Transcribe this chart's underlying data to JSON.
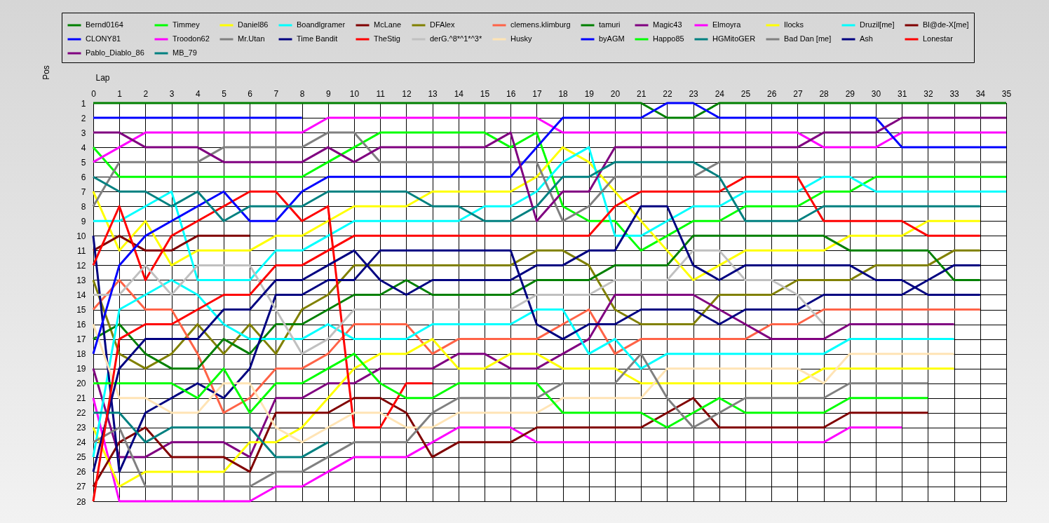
{
  "chart_data": {
    "type": "line",
    "xlabel": "Lap",
    "ylabel": "Pos",
    "x": [
      0,
      1,
      2,
      3,
      4,
      5,
      6,
      7,
      8,
      9,
      10,
      11,
      12,
      13,
      14,
      15,
      16,
      17,
      18,
      19,
      20,
      21,
      22,
      23,
      24,
      25,
      26,
      27,
      28,
      29,
      30,
      31,
      32,
      33,
      34,
      35
    ],
    "xlim": [
      0,
      35
    ],
    "ylim": [
      28,
      1
    ],
    "xticks": [
      0,
      1,
      2,
      3,
      4,
      5,
      6,
      7,
      8,
      9,
      10,
      11,
      12,
      13,
      14,
      15,
      16,
      17,
      18,
      19,
      20,
      21,
      22,
      23,
      24,
      25,
      26,
      27,
      28,
      29,
      30,
      31,
      32,
      33,
      34,
      35
    ],
    "yticks": [
      1,
      2,
      3,
      4,
      5,
      6,
      7,
      8,
      9,
      10,
      11,
      12,
      13,
      14,
      15,
      16,
      17,
      18,
      19,
      20,
      21,
      22,
      23,
      24,
      25,
      26,
      27,
      28
    ],
    "grid": true,
    "legend": "top",
    "line_style": "solid",
    "series": [
      {
        "name": "Bernd0164",
        "color": "#008000",
        "values": [
          1,
          1,
          1,
          1,
          1,
          1,
          1,
          1,
          1,
          1,
          1,
          1,
          1,
          1,
          1,
          1,
          1,
          1,
          1,
          1,
          1,
          1,
          2,
          2,
          1,
          1,
          1,
          1,
          1,
          1,
          1,
          1,
          1,
          1,
          1,
          1
        ]
      },
      {
        "name": "Timmey",
        "color": "#00ff00",
        "values": [
          4,
          6,
          6,
          6,
          6,
          6,
          6,
          6,
          6,
          5,
          4,
          3,
          3,
          3,
          3,
          3,
          4,
          3,
          8,
          9,
          9,
          11,
          10,
          9,
          9,
          8,
          8,
          8,
          7,
          7,
          6,
          6,
          6,
          6,
          6,
          6
        ]
      },
      {
        "name": "Daniel86",
        "color": "#ffff00",
        "values": [
          7,
          11,
          9,
          12,
          11,
          11,
          11,
          10,
          10,
          9,
          8,
          8,
          8,
          7,
          7,
          7,
          7,
          6,
          4,
          5,
          7,
          9,
          11,
          13,
          12,
          11,
          11,
          11,
          11,
          10,
          10,
          10,
          9,
          9,
          9,
          null
        ]
      },
      {
        "name": "Boandlgramer",
        "color": "#00ffff",
        "values": [
          9,
          9,
          8,
          7,
          13,
          13,
          13,
          11,
          11,
          10,
          9,
          9,
          9,
          9,
          9,
          8,
          8,
          7,
          5,
          4,
          10,
          10,
          9,
          8,
          8,
          7,
          7,
          7,
          6,
          6,
          7,
          7,
          7,
          7,
          7,
          7
        ]
      },
      {
        "name": "McLane",
        "color": "#800000",
        "values": [
          11,
          10,
          11,
          11,
          10,
          10,
          10,
          null,
          null,
          null,
          null,
          null,
          null,
          null,
          null,
          null,
          null,
          null,
          null,
          null,
          null,
          null,
          null,
          null,
          null,
          null,
          null,
          null,
          null,
          null,
          null,
          null,
          null,
          null,
          null,
          null
        ]
      },
      {
        "name": "DFAlex",
        "color": "#808000",
        "values": [
          13,
          18,
          19,
          18,
          16,
          18,
          16,
          18,
          15,
          14,
          12,
          12,
          12,
          12,
          12,
          12,
          12,
          11,
          11,
          12,
          15,
          16,
          16,
          16,
          14,
          14,
          14,
          13,
          13,
          13,
          12,
          12,
          12,
          11,
          11,
          null
        ]
      },
      {
        "name": "clemens.klimburg",
        "color": "#ff6347",
        "values": [
          15,
          13,
          15,
          15,
          18,
          22,
          21,
          19,
          19,
          18,
          16,
          16,
          16,
          18,
          17,
          17,
          17,
          17,
          16,
          15,
          18,
          17,
          17,
          17,
          17,
          17,
          16,
          16,
          15,
          15,
          15,
          15,
          15,
          15,
          15,
          null
        ]
      },
      {
        "name": "tamuri",
        "color": "#008000",
        "values": [
          17,
          16,
          18,
          19,
          19,
          17,
          18,
          16,
          16,
          15,
          14,
          14,
          13,
          14,
          14,
          14,
          14,
          13,
          13,
          13,
          12,
          12,
          12,
          10,
          10,
          10,
          10,
          10,
          10,
          11,
          11,
          11,
          11,
          13,
          13,
          null
        ]
      },
      {
        "name": "Magic43",
        "color": "#800080",
        "values": [
          19,
          25,
          25,
          24,
          24,
          24,
          25,
          21,
          21,
          20,
          20,
          19,
          19,
          19,
          18,
          18,
          19,
          19,
          18,
          17,
          14,
          14,
          14,
          14,
          15,
          16,
          17,
          17,
          17,
          16,
          16,
          16,
          16,
          16,
          null,
          null
        ]
      },
      {
        "name": "Elmoyra",
        "color": "#ff00ff",
        "values": [
          21,
          28,
          28,
          28,
          28,
          28,
          28,
          27,
          27,
          26,
          25,
          25,
          25,
          24,
          23,
          23,
          23,
          24,
          24,
          24,
          24,
          24,
          24,
          24,
          24,
          24,
          24,
          24,
          24,
          23,
          23,
          23,
          null,
          null,
          null,
          null
        ]
      },
      {
        "name": "Ilocks",
        "color": "#ffff00",
        "values": [
          23,
          27,
          26,
          26,
          26,
          26,
          24,
          24,
          23,
          21,
          19,
          18,
          18,
          17,
          19,
          19,
          18,
          18,
          19,
          19,
          19,
          20,
          20,
          20,
          20,
          20,
          20,
          20,
          19,
          19,
          19,
          19,
          19,
          19,
          null,
          null
        ]
      },
      {
        "name": "Druzil[me]",
        "color": "#00ffff",
        "values": [
          25,
          15,
          14,
          13,
          14,
          16,
          17,
          17,
          17,
          16,
          17,
          17,
          17,
          16,
          16,
          16,
          16,
          15,
          15,
          18,
          17,
          19,
          18,
          18,
          18,
          18,
          18,
          18,
          18,
          17,
          17,
          17,
          17,
          17,
          null,
          null
        ]
      },
      {
        "name": "Bl@de-X[me]",
        "color": "#800000",
        "values": [
          27,
          24,
          23,
          25,
          25,
          25,
          26,
          22,
          22,
          22,
          21,
          21,
          22,
          25,
          24,
          24,
          24,
          23,
          23,
          23,
          23,
          23,
          22,
          21,
          23,
          23,
          23,
          23,
          23,
          22,
          22,
          22,
          22,
          null,
          null,
          null
        ]
      },
      {
        "name": "CLONY81",
        "color": "#0000ff",
        "values": [
          2,
          2,
          2,
          2,
          2,
          2,
          2,
          2,
          2,
          null,
          null,
          null,
          null,
          null,
          null,
          null,
          null,
          null,
          null,
          null,
          null,
          null,
          null,
          null,
          null,
          null,
          null,
          null,
          null,
          null,
          null,
          null,
          null,
          null,
          null,
          null
        ]
      },
      {
        "name": "Troodon62",
        "color": "#ff00ff",
        "values": [
          5,
          4,
          3,
          3,
          3,
          3,
          3,
          3,
          3,
          2,
          2,
          2,
          2,
          2,
          2,
          2,
          2,
          2,
          3,
          3,
          3,
          3,
          3,
          3,
          3,
          3,
          3,
          3,
          4,
          4,
          4,
          3,
          3,
          3,
          3,
          3
        ]
      },
      {
        "name": "Mr.Utan",
        "color": "#808080",
        "values": [
          8,
          5,
          5,
          5,
          5,
          4,
          4,
          4,
          4,
          3,
          3,
          5,
          5,
          5,
          5,
          5,
          5,
          5,
          9,
          8,
          6,
          6,
          6,
          6,
          5,
          5,
          5,
          5,
          5,
          5,
          5,
          5,
          5,
          5,
          5,
          5
        ]
      },
      {
        "name": "Time Bandit",
        "color": "#000080",
        "values": [
          10,
          26,
          22,
          21,
          20,
          21,
          19,
          14,
          14,
          13,
          13,
          11,
          11,
          11,
          11,
          11,
          11,
          16,
          17,
          16,
          16,
          15,
          15,
          15,
          16,
          15,
          15,
          15,
          14,
          14,
          14,
          14,
          13,
          12,
          12,
          null
        ]
      },
      {
        "name": "TheStig",
        "color": "#ff0000",
        "values": [
          12,
          8,
          13,
          10,
          9,
          8,
          7,
          7,
          9,
          8,
          23,
          23,
          20,
          20,
          null,
          null,
          null,
          null,
          null,
          null,
          null,
          null,
          null,
          null,
          null,
          null,
          null,
          null,
          null,
          null,
          null,
          null,
          null,
          null,
          null,
          null
        ]
      },
      {
        "name": "derG.^8*^1*^3*",
        "color": "#c0c0c0",
        "values": [
          14,
          14,
          12,
          14,
          12,
          12,
          12,
          15,
          18,
          17,
          15,
          15,
          15,
          15,
          15,
          15,
          15,
          14,
          14,
          14,
          13,
          13,
          13,
          11,
          11,
          13,
          13,
          14,
          16,
          null,
          null,
          null,
          null,
          null,
          null,
          null
        ]
      },
      {
        "name": "Husky",
        "color": "#ffe4b5",
        "values": [
          16,
          21,
          21,
          22,
          22,
          20,
          20,
          23,
          24,
          23,
          22,
          22,
          23,
          23,
          22,
          22,
          22,
          22,
          21,
          21,
          21,
          21,
          19,
          19,
          19,
          19,
          19,
          19,
          20,
          18,
          18,
          18,
          18,
          18,
          null,
          null
        ]
      },
      {
        "name": "byAGM",
        "color": "#0000ff",
        "values": [
          18,
          12,
          10,
          9,
          8,
          7,
          9,
          9,
          7,
          6,
          6,
          6,
          6,
          6,
          6,
          6,
          6,
          4,
          2,
          2,
          2,
          2,
          1,
          1,
          2,
          2,
          2,
          2,
          2,
          2,
          2,
          4,
          4,
          4,
          4,
          4
        ]
      },
      {
        "name": "Happo85",
        "color": "#00ff00",
        "values": [
          20,
          20,
          20,
          20,
          21,
          19,
          22,
          20,
          20,
          19,
          18,
          20,
          21,
          21,
          20,
          20,
          20,
          20,
          22,
          22,
          22,
          22,
          23,
          22,
          21,
          22,
          22,
          22,
          22,
          21,
          21,
          21,
          21,
          null,
          null,
          null
        ]
      },
      {
        "name": "HGMitoGER",
        "color": "#008080",
        "values": [
          22,
          22,
          24,
          23,
          23,
          23,
          23,
          25,
          25,
          24,
          null,
          null,
          null,
          null,
          null,
          null,
          null,
          null,
          null,
          null,
          null,
          null,
          null,
          null,
          null,
          null,
          null,
          null,
          null,
          null,
          null,
          null,
          null,
          null,
          null,
          null
        ]
      },
      {
        "name": "Bad Dan [me]",
        "color": "#808080",
        "values": [
          24,
          23,
          27,
          27,
          27,
          27,
          27,
          26,
          26,
          25,
          24,
          24,
          24,
          22,
          21,
          21,
          21,
          21,
          20,
          20,
          20,
          18,
          21,
          23,
          22,
          21,
          21,
          21,
          21,
          20,
          20,
          20,
          20,
          null,
          null,
          null
        ]
      },
      {
        "name": "Ash",
        "color": "#000080",
        "values": [
          26,
          19,
          17,
          17,
          17,
          15,
          15,
          13,
          13,
          12,
          11,
          13,
          14,
          13,
          13,
          13,
          13,
          12,
          12,
          11,
          11,
          8,
          8,
          12,
          13,
          12,
          12,
          12,
          12,
          12,
          13,
          13,
          14,
          14,
          14,
          null
        ]
      },
      {
        "name": "Lonestar",
        "color": "#ff0000",
        "values": [
          28,
          17,
          16,
          16,
          15,
          14,
          14,
          12,
          12,
          11,
          10,
          10,
          10,
          10,
          10,
          10,
          10,
          10,
          10,
          10,
          8,
          7,
          7,
          7,
          7,
          6,
          6,
          6,
          9,
          9,
          9,
          9,
          10,
          10,
          10,
          null
        ]
      },
      {
        "name": "Pablo_Diablo_86",
        "color": "#800080",
        "values": [
          3,
          3,
          4,
          4,
          4,
          5,
          5,
          5,
          5,
          4,
          5,
          4,
          4,
          4,
          4,
          4,
          3,
          9,
          7,
          7,
          4,
          4,
          4,
          4,
          4,
          4,
          4,
          4,
          3,
          3,
          3,
          2,
          2,
          2,
          2,
          2
        ]
      },
      {
        "name": "MB_79",
        "color": "#008080",
        "values": [
          6,
          7,
          7,
          8,
          7,
          9,
          8,
          8,
          8,
          7,
          7,
          7,
          7,
          8,
          8,
          9,
          9,
          8,
          6,
          6,
          5,
          5,
          5,
          5,
          6,
          9,
          9,
          9,
          8,
          8,
          8,
          8,
          8,
          8,
          8,
          null
        ]
      }
    ]
  }
}
